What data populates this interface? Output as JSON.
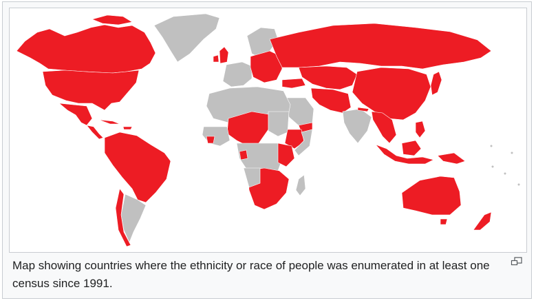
{
  "caption": "Map showing countries where the ethnicity or race of people was enumerated in at least one census since 1991.",
  "map": {
    "colors": {
      "enumerated": "#ed1c24",
      "not_enumerated": "#c0c0c0",
      "water": "#ffffff",
      "frame_background": "#f8f9fa",
      "frame_border": "#c8ccd1"
    },
    "regions_enumerated": [
      "Canada",
      "United States",
      "Mexico",
      "Central America",
      "Caribbean",
      "Colombia",
      "Venezuela",
      "Guyana",
      "Suriname",
      "Ecuador",
      "Peru",
      "Brazil",
      "Bolivia",
      "Paraguay",
      "Uruguay",
      "Chile",
      "United Kingdom",
      "Ireland",
      "Eastern Europe",
      "Russia",
      "Kazakhstan",
      "Central Asia",
      "Mongolia",
      "China",
      "Turkey",
      "Iran",
      "Afghanistan",
      "Pakistan",
      "Nepal",
      "Myanmar",
      "Vietnam",
      "Laos",
      "Malaysia",
      "Indonesia",
      "Papua New Guinea",
      "Philippines",
      "Japan",
      "Yemen",
      "Niger",
      "Chad",
      "Nigeria",
      "Cameroon",
      "Sierra Leone",
      "Liberia",
      "Ethiopia",
      "Kenya",
      "Uganda",
      "Zambia",
      "Malawi",
      "Mozambique",
      "Zimbabwe",
      "Namibia",
      "South Africa",
      "Gabon",
      "Australia",
      "New Zealand"
    ],
    "regions_not_enumerated": [
      "Greenland",
      "Argentina",
      "Western Europe",
      "Scandinavia",
      "North Africa",
      "Saudi Arabia",
      "India",
      "DR Congo",
      "Angola",
      "Madagascar",
      "Sudan",
      "Somalia"
    ]
  },
  "magnify_icon": "enlarge-icon"
}
